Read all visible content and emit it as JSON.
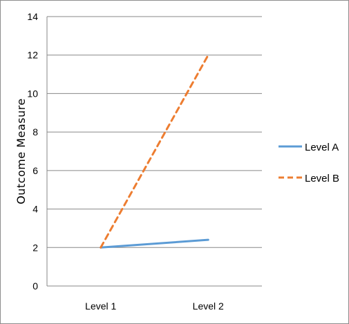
{
  "chart_data": {
    "type": "line",
    "categories": [
      "Level 1",
      "Level 2"
    ],
    "series": [
      {
        "name": "Level A",
        "values": [
          2,
          2.4
        ],
        "color": "#5b9bd5",
        "style": "solid"
      },
      {
        "name": "Level B",
        "values": [
          2,
          12
        ],
        "color": "#ed7d31",
        "style": "dashed"
      }
    ],
    "title": "",
    "xlabel": "",
    "ylabel": "Outcome Measure",
    "ylim": [
      0,
      14
    ],
    "yticks": [
      0,
      2,
      4,
      6,
      8,
      10,
      12,
      14
    ],
    "grid": true,
    "legend_position": "right"
  }
}
